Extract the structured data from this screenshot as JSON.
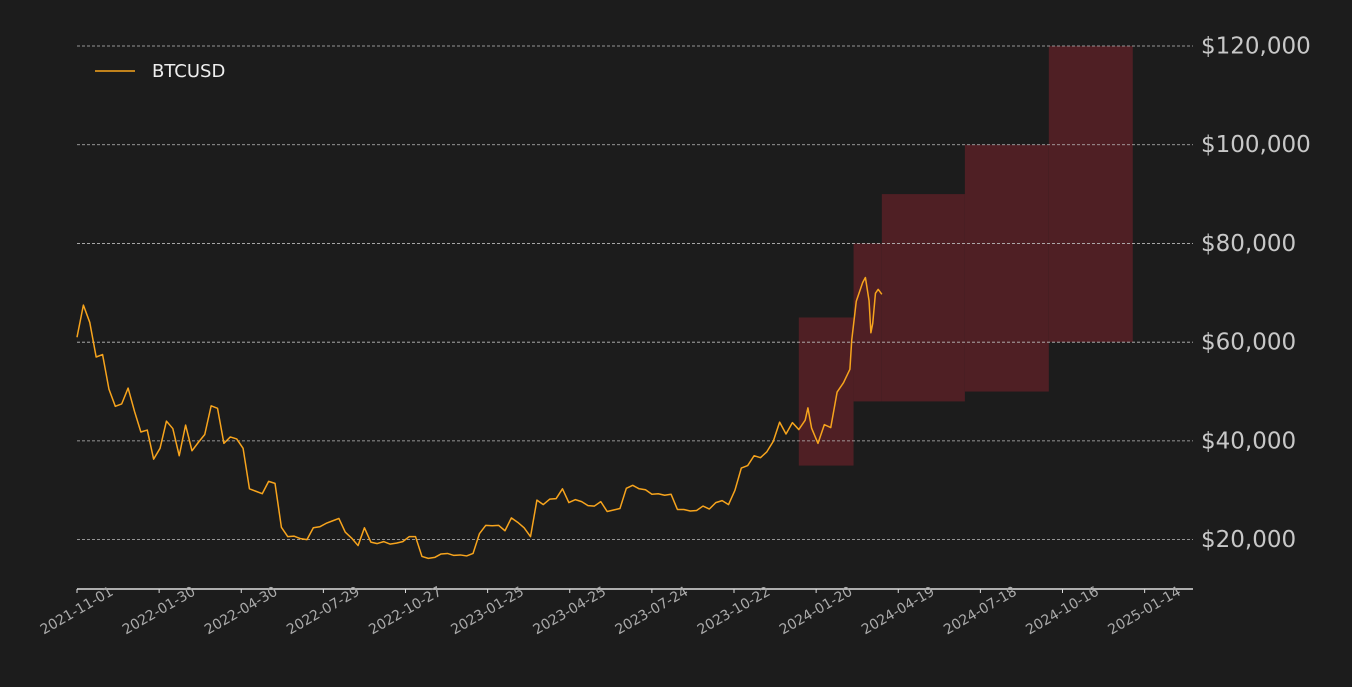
{
  "chart_data": {
    "type": "line",
    "x": [
      "2021-11-01",
      "2021-11-08",
      "2021-11-15",
      "2021-11-22",
      "2021-11-29",
      "2021-12-06",
      "2021-12-13",
      "2021-12-20",
      "2021-12-27",
      "2022-01-03",
      "2022-01-10",
      "2022-01-17",
      "2022-01-24",
      "2022-01-31",
      "2022-02-07",
      "2022-02-14",
      "2022-02-21",
      "2022-02-28",
      "2022-03-07",
      "2022-03-14",
      "2022-03-21",
      "2022-03-28",
      "2022-04-04",
      "2022-04-11",
      "2022-04-18",
      "2022-04-25",
      "2022-05-02",
      "2022-05-09",
      "2022-05-16",
      "2022-05-23",
      "2022-05-30",
      "2022-06-06",
      "2022-06-13",
      "2022-06-20",
      "2022-06-27",
      "2022-07-04",
      "2022-07-11",
      "2022-07-18",
      "2022-07-25",
      "2022-08-01",
      "2022-08-08",
      "2022-08-15",
      "2022-08-22",
      "2022-08-29",
      "2022-09-05",
      "2022-09-12",
      "2022-09-19",
      "2022-09-26",
      "2022-10-03",
      "2022-10-10",
      "2022-10-17",
      "2022-10-24",
      "2022-10-31",
      "2022-11-07",
      "2022-11-14",
      "2022-11-21",
      "2022-11-28",
      "2022-12-05",
      "2022-12-12",
      "2022-12-19",
      "2022-12-26",
      "2023-01-02",
      "2023-01-09",
      "2023-01-16",
      "2023-01-23",
      "2023-01-30",
      "2023-02-06",
      "2023-02-13",
      "2023-02-20",
      "2023-02-27",
      "2023-03-06",
      "2023-03-13",
      "2023-03-20",
      "2023-03-27",
      "2023-04-03",
      "2023-04-10",
      "2023-04-17",
      "2023-04-24",
      "2023-05-01",
      "2023-05-08",
      "2023-05-15",
      "2023-05-22",
      "2023-05-29",
      "2023-06-05",
      "2023-06-12",
      "2023-06-19",
      "2023-06-26",
      "2023-07-03",
      "2023-07-10",
      "2023-07-17",
      "2023-07-24",
      "2023-07-31",
      "2023-08-07",
      "2023-08-14",
      "2023-08-21",
      "2023-08-28",
      "2023-09-04",
      "2023-09-11",
      "2023-09-18",
      "2023-09-25",
      "2023-10-02",
      "2023-10-09",
      "2023-10-16",
      "2023-10-23",
      "2023-10-30",
      "2023-11-06",
      "2023-11-13",
      "2023-11-20",
      "2023-11-27",
      "2023-12-04",
      "2023-12-11",
      "2023-12-18",
      "2023-12-25",
      "2024-01-01",
      "2024-01-08",
      "2024-01-11",
      "2024-01-15",
      "2024-01-22",
      "2024-01-29",
      "2024-02-05",
      "2024-02-12",
      "2024-02-19",
      "2024-02-26",
      "2024-02-28",
      "2024-03-04",
      "2024-03-11",
      "2024-03-14",
      "2024-03-18",
      "2024-03-20",
      "2024-03-22",
      "2024-03-25",
      "2024-03-28",
      "2024-04-01"
    ],
    "series": [
      {
        "name": "BTCUSD",
        "color": "#f7a41d",
        "values": [
          61000,
          67500,
          64000,
          57000,
          57500,
          50500,
          47000,
          47500,
          50700,
          46000,
          41800,
          42200,
          36300,
          38500,
          44000,
          42500,
          37000,
          43200,
          38000,
          39700,
          41300,
          47100,
          46600,
          39500,
          40800,
          40400,
          38500,
          30300,
          29800,
          29300,
          31800,
          31400,
          22500,
          20600,
          20700,
          20200,
          20000,
          22400,
          22600,
          23300,
          23800,
          24300,
          21500,
          20300,
          18800,
          22400,
          19500,
          19200,
          19600,
          19100,
          19300,
          19600,
          20600,
          20600,
          16600,
          16200,
          16400,
          17100,
          17200,
          16800,
          16900,
          16700,
          17200,
          21200,
          22900,
          22800,
          22900,
          21800,
          24400,
          23500,
          22400,
          20600,
          28000,
          27100,
          28200,
          28300,
          30300,
          27500,
          28100,
          27700,
          26900,
          26800,
          27700,
          25700,
          26000,
          26300,
          30400,
          31000,
          30300,
          30100,
          29200,
          29300,
          29000,
          29200,
          26100,
          26100,
          25800,
          25900,
          26800,
          26200,
          27500,
          27900,
          27100,
          30000,
          34500,
          35000,
          37000,
          36600,
          37800,
          39900,
          43800,
          41400,
          43700,
          42300,
          44200,
          46700,
          42600,
          39500,
          43300,
          42700,
          49900,
          51800,
          54500,
          60400,
          68300,
          72100,
          73100,
          68400,
          61900,
          63800,
          69900,
          70700,
          69700
        ]
      }
    ],
    "ranges": [
      {
        "x0": "2024-01-01",
        "x1": "2024-03-01",
        "low": 35000,
        "high": 65000
      },
      {
        "x0": "2024-03-01",
        "x1": "2024-04-01",
        "low": 48000,
        "high": 80000
      },
      {
        "x0": "2024-04-01",
        "x1": "2024-07-01",
        "low": 48000,
        "high": 90000
      },
      {
        "x0": "2024-07-01",
        "x1": "2024-10-01",
        "low": 50000,
        "high": 100000
      },
      {
        "x0": "2024-10-01",
        "x1": "2025-01-01",
        "low": 60000,
        "high": 120000
      }
    ],
    "range_color": "#4f1f24",
    "xlim": [
      "2021-11-01",
      "2025-03-08"
    ],
    "xticks": [
      "2021-11-01",
      "2022-01-30",
      "2022-04-30",
      "2022-07-29",
      "2022-10-27",
      "2023-01-25",
      "2023-04-25",
      "2023-07-24",
      "2023-10-22",
      "2024-01-20",
      "2024-04-19",
      "2024-07-18",
      "2024-10-16",
      "2025-01-14"
    ],
    "ylim": [
      10000,
      120000
    ],
    "yticks": [
      {
        "value": 20000,
        "label": "$20,000"
      },
      {
        "value": 40000,
        "label": "$40,000"
      },
      {
        "value": 60000,
        "label": "$60,000"
      },
      {
        "value": 80000,
        "label": "$80,000"
      },
      {
        "value": 100000,
        "label": "$100,000"
      },
      {
        "value": 120000,
        "label": "$120,000"
      }
    ],
    "grid": true,
    "legend": "upper-left"
  }
}
